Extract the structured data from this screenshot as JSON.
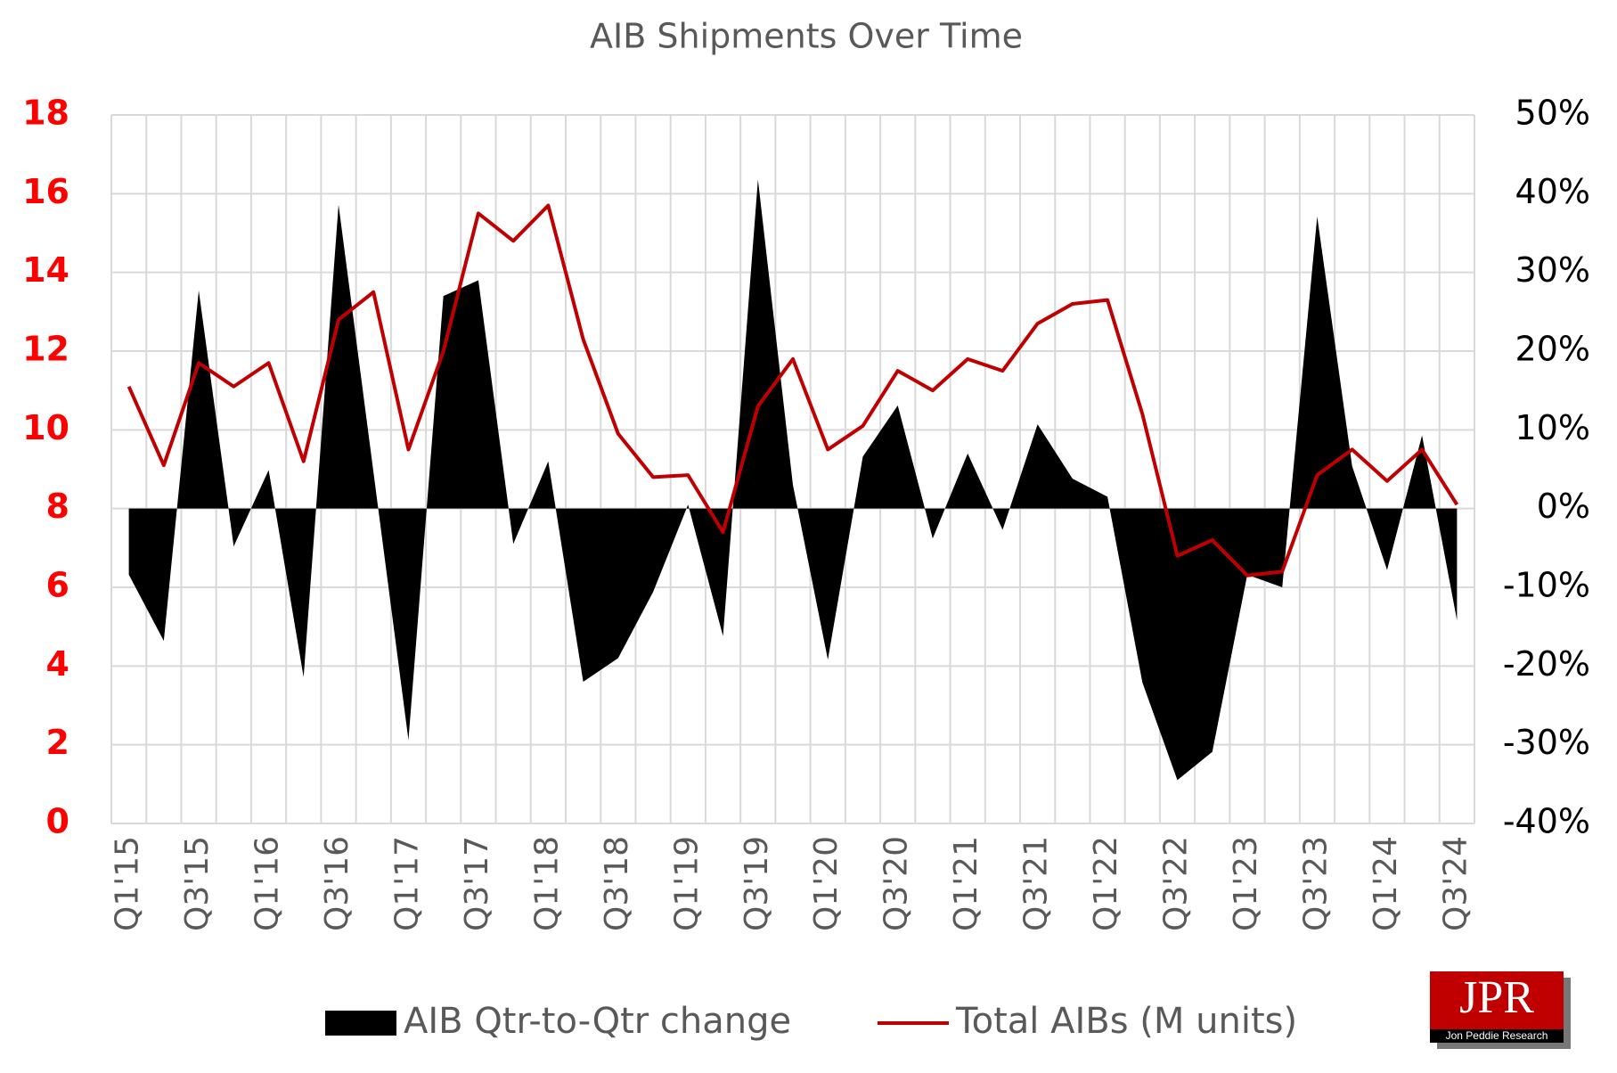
{
  "chart_data": {
    "type": "combo",
    "title": "AIB Shipments Over Time",
    "categories": [
      "Q1'15",
      null,
      "Q3'15",
      null,
      "Q1'16",
      null,
      "Q3'16",
      null,
      "Q1'17",
      null,
      "Q3'17",
      null,
      "Q1'18",
      null,
      "Q3'18",
      null,
      "Q1'19",
      null,
      "Q3'19",
      null,
      "Q1'20",
      null,
      "Q3'20",
      null,
      "Q1'21",
      null,
      "Q3'21",
      null,
      "Q1'22",
      null,
      "Q3'22",
      null,
      "Q1'23",
      null,
      "Q3'23",
      null,
      "Q1'24",
      null,
      "Q3'24"
    ],
    "series": [
      {
        "name": "AIB Qtr-to-Qtr change",
        "type": "area",
        "axis": "y2",
        "color": "#000000",
        "values": [
          -8.4,
          -16.8,
          27.7,
          -4.8,
          4.9,
          -21.4,
          38.6,
          4.6,
          -29.4,
          27,
          29,
          -4.5,
          6,
          -22,
          -19,
          -10.6,
          0.5,
          -16.2,
          41.8,
          3,
          -19.2,
          6.6,
          13.1,
          -3.8,
          7,
          -2.7,
          10.7,
          3.8,
          1.5,
          -22.1,
          -34.5,
          -30.9,
          -8.4,
          -10,
          37.1,
          5.4,
          -7.8,
          9.3,
          -14.2
        ]
      },
      {
        "name": "Total AIBs (M units)",
        "type": "line",
        "color": "#c00000",
        "values": [
          11.1,
          9.1,
          11.7,
          11.1,
          11.7,
          9.2,
          12.8,
          13.5,
          9.5,
          12.0,
          15.5,
          14.8,
          15.7,
          12.3,
          9.9,
          8.8,
          8.85,
          7.4,
          10.6,
          11.8,
          9.5,
          10.1,
          11.5,
          11.0,
          11.8,
          11.5,
          12.7,
          13.2,
          13.3,
          10.4,
          6.8,
          7.2,
          6.3,
          6.4,
          8.85,
          9.5,
          8.7,
          9.5,
          8.1
        ]
      }
    ],
    "ylim": [
      0,
      18
    ],
    "yticks": [
      0,
      2,
      4,
      6,
      8,
      10,
      12,
      14,
      16,
      18
    ],
    "y2lim": [
      -40,
      50
    ],
    "y2ticks": [
      {
        "value": -40,
        "label": "-40%"
      },
      {
        "value": -30,
        "label": "-30%"
      },
      {
        "value": -20,
        "label": "-20%"
      },
      {
        "value": -10,
        "label": "-10%"
      },
      {
        "value": 0,
        "label": "0%"
      },
      {
        "value": 10,
        "label": "10%"
      },
      {
        "value": 20,
        "label": "20%"
      },
      {
        "value": 30,
        "label": "30%"
      },
      {
        "value": 40,
        "label": "40%"
      },
      {
        "value": 50,
        "label": "50%"
      }
    ],
    "grid": true,
    "y_tick_color": "#ff0000",
    "legend": "bottom"
  },
  "logo": {
    "text": "JPR",
    "subtitle": "Jon Peddie Research"
  }
}
